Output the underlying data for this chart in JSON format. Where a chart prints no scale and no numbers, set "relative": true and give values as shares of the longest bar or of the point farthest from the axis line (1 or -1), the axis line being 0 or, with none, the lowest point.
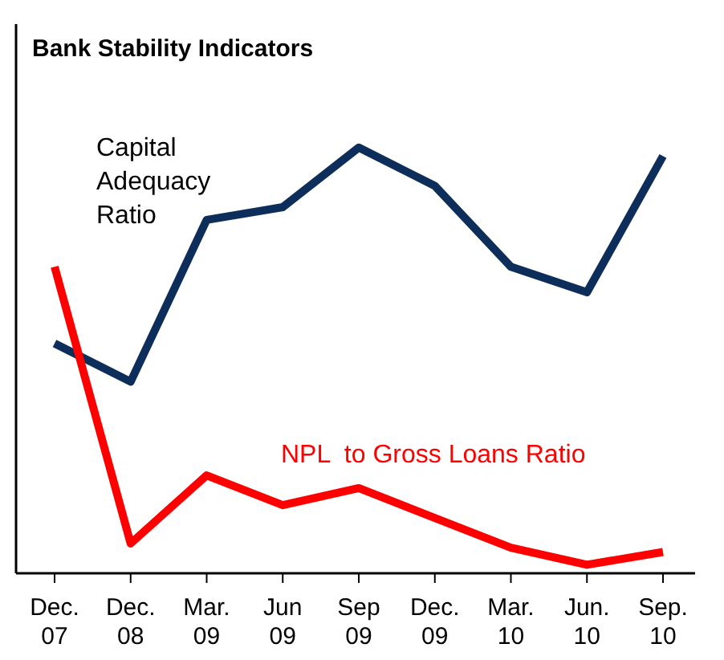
{
  "chart_data": {
    "type": "line",
    "title": "Bank Stability Indicators",
    "relative": true,
    "categories": [
      "Dec.\n07",
      "Dec.\n08",
      "Mar.\n09",
      "Jun\n09",
      "Sep\n09",
      "Dec.\n09",
      "Mar.\n10",
      "Jun.\n10",
      "Sep.\n10"
    ],
    "series": [
      {
        "name": "Capital\nAdequacy\nRatio",
        "color": "#0d2d5a",
        "values": [
          0.54,
          0.45,
          0.83,
          0.86,
          1,
          0.91,
          0.72,
          0.66,
          0.98
        ]
      },
      {
        "name": "NPL  to Gross Loans Ratio",
        "color": "#ff0000",
        "values": [
          0.72,
          0.07,
          0.23,
          0.16,
          0.2,
          0.13,
          0.06,
          0.02,
          0.05
        ]
      }
    ]
  }
}
